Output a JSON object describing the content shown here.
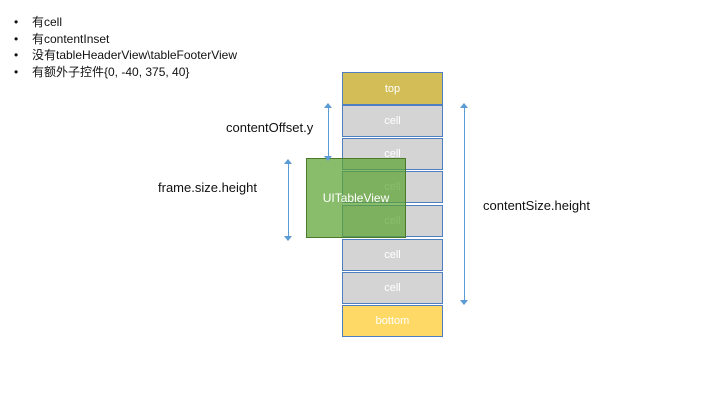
{
  "bullets": [
    "有cell",
    "有contentInset",
    "没有tableHeaderView\\tableFooterView",
    "有额外子控件{0, -40, 375, 40}"
  ],
  "bullet_glyph": "•",
  "diagram": {
    "top_label": "top",
    "cell_labels": [
      "cell",
      "cell",
      "cell",
      "cell",
      "cell",
      "cell"
    ],
    "bottom_label": "bottom",
    "tableview_label": "UITableView",
    "content_offset_label": "contentOffset.y",
    "frame_height_label": "frame.size.height",
    "content_size_label": "contentSize.height"
  },
  "colors": {
    "cell_fill": "#d4d4d4",
    "top_fill": "#d3bd57",
    "bottom_fill": "#ffd966",
    "tableview_fill": "#5ca232",
    "border": "#4f7ec1",
    "arrow": "#5b9bd5"
  }
}
